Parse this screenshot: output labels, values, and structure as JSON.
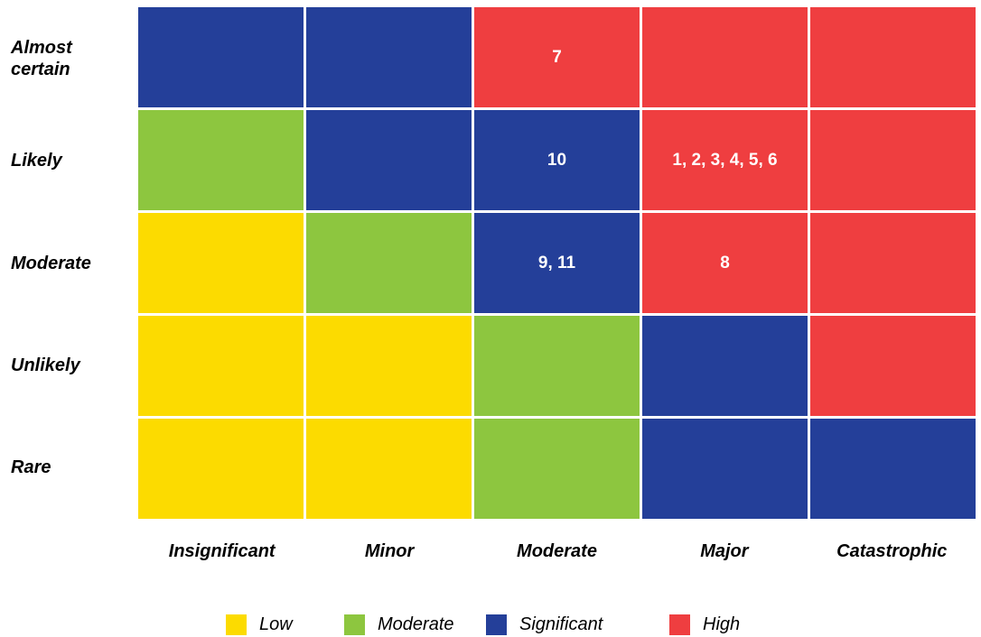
{
  "chart_data": {
    "type": "heatmap",
    "title": "",
    "xlabel": "",
    "ylabel": "",
    "x": [
      "Insignificant",
      "Minor",
      "Moderate",
      "Major",
      "Catastrophic"
    ],
    "y": [
      "Almost certain",
      "Likely",
      "Moderate",
      "Unlikely",
      "Rare"
    ],
    "cells": [
      [
        {
          "level": "significant",
          "label": ""
        },
        {
          "level": "significant",
          "label": ""
        },
        {
          "level": "high",
          "label": "7"
        },
        {
          "level": "high",
          "label": ""
        },
        {
          "level": "high",
          "label": ""
        }
      ],
      [
        {
          "level": "moderate",
          "label": ""
        },
        {
          "level": "significant",
          "label": ""
        },
        {
          "level": "significant",
          "label": "10"
        },
        {
          "level": "high",
          "label": "1, 2, 3, 4, 5, 6"
        },
        {
          "level": "high",
          "label": ""
        }
      ],
      [
        {
          "level": "low",
          "label": ""
        },
        {
          "level": "moderate",
          "label": ""
        },
        {
          "level": "significant",
          "label": "9, 11"
        },
        {
          "level": "high",
          "label": "8"
        },
        {
          "level": "high",
          "label": ""
        }
      ],
      [
        {
          "level": "low",
          "label": ""
        },
        {
          "level": "low",
          "label": ""
        },
        {
          "level": "moderate",
          "label": ""
        },
        {
          "level": "significant",
          "label": ""
        },
        {
          "level": "high",
          "label": ""
        }
      ],
      [
        {
          "level": "low",
          "label": ""
        },
        {
          "level": "low",
          "label": ""
        },
        {
          "level": "moderate",
          "label": ""
        },
        {
          "level": "significant",
          "label": ""
        },
        {
          "level": "significant",
          "label": ""
        }
      ]
    ],
    "legend": [
      {
        "key": "low",
        "name": "Low",
        "color": "#FCDB00"
      },
      {
        "key": "moderate",
        "name": "Moderate",
        "color": "#8DC63F"
      },
      {
        "key": "significant",
        "name": "Significant",
        "color": "#243F99"
      },
      {
        "key": "high",
        "name": "High",
        "color": "#EF3E40"
      }
    ],
    "legend_position": "bottom"
  }
}
